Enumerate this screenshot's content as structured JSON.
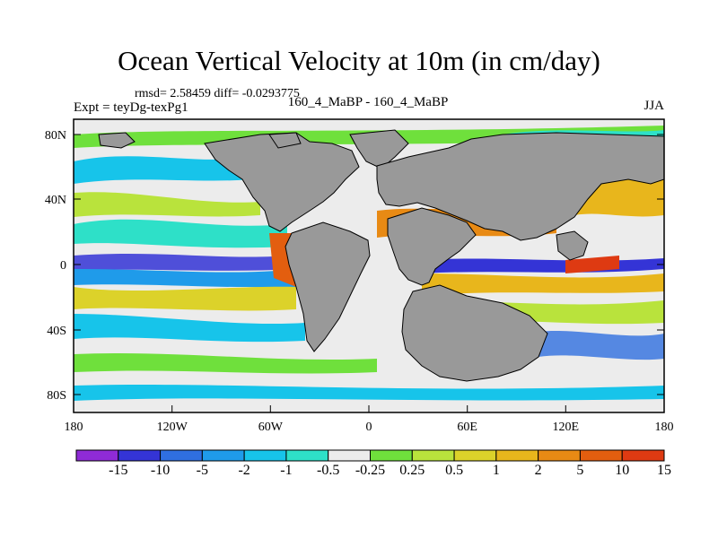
{
  "title": "Ocean Vertical Velocity at 10m (in cm/day)",
  "stats": "rmsd= 2.58459 diff= -0.0293775",
  "expt": "Expt = teyDg-texPg1",
  "comparison": "160_4_MaBP - 160_4_MaBP",
  "season": "JJA",
  "lat_ticks": [
    "80N",
    "40N",
    "0",
    "40S",
    "80S"
  ],
  "lon_ticks": [
    "180",
    "120W",
    "60W",
    "0",
    "60E",
    "120E",
    "180"
  ],
  "colorbar": {
    "colors": [
      "#8f2bd6",
      "#3434d6",
      "#2f6fe0",
      "#1f9bea",
      "#17c4ea",
      "#2ee0c8",
      "#ececec",
      "#6fe03c",
      "#b9e33c",
      "#dcd22a",
      "#e8b61c",
      "#e88a14",
      "#e35e0f",
      "#de3a12"
    ],
    "labels": [
      "-15",
      "-10",
      "-5",
      "-2",
      "-1",
      "-0.5",
      "-0.25",
      "0.25",
      "0.5",
      "1",
      "2",
      "5",
      "10",
      "15"
    ]
  },
  "land_color": "#999999"
}
